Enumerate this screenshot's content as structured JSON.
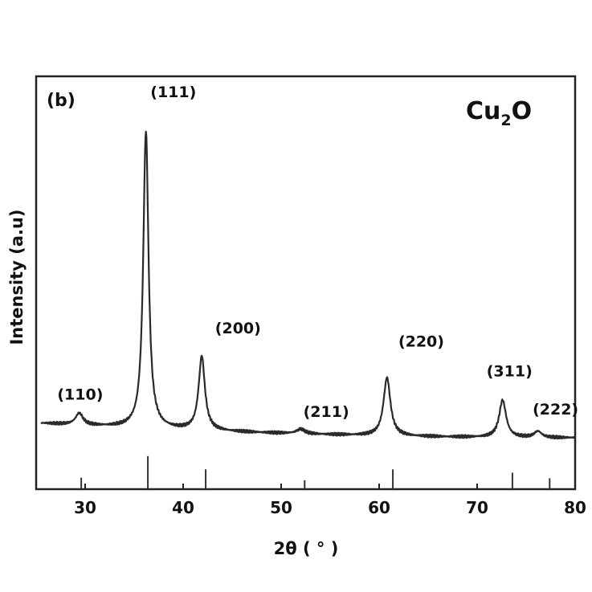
{
  "chart_data": {
    "type": "line",
    "panel_label": "(b)",
    "title": "",
    "formula": {
      "main": "Cu",
      "sub": "2",
      "tail": "O"
    },
    "xlabel": "2θ ( ° )",
    "ylabel": "Intensity (a.u)",
    "xlim": [
      25,
      80
    ],
    "ylim": [
      -0.6,
      4.7
    ],
    "x_ticks": [
      "30",
      "40",
      "50",
      "60",
      "70",
      "80"
    ],
    "x_tick_values": [
      30,
      40,
      50,
      60,
      70,
      80
    ],
    "grid": false,
    "series": [
      {
        "baseline": 0.25,
        "baseline_end": 0.06,
        "peaks": [
          {
            "x": 29.4,
            "height": 0.15,
            "width": 0.45
          },
          {
            "x": 36.2,
            "height": 3.82,
            "width": 0.32
          },
          {
            "x": 41.9,
            "height": 0.95,
            "width": 0.38
          },
          {
            "x": 52.0,
            "height": 0.06,
            "width": 0.5
          },
          {
            "x": 60.8,
            "height": 0.75,
            "width": 0.42
          },
          {
            "x": 72.6,
            "height": 0.48,
            "width": 0.42
          },
          {
            "x": 76.2,
            "height": 0.08,
            "width": 0.45
          }
        ]
      }
    ],
    "reference_lines": [
      {
        "x": 29.6,
        "height": 0.35
      },
      {
        "x": 36.4,
        "height": 1.0
      },
      {
        "x": 42.3,
        "height": 0.6
      },
      {
        "x": 52.4,
        "height": 0.27
      },
      {
        "x": 61.4,
        "height": 0.6
      },
      {
        "x": 73.6,
        "height": 0.5
      },
      {
        "x": 77.4,
        "height": 0.33
      }
    ],
    "peak_labels": [
      {
        "text": "(110)",
        "x": 29.5,
        "y": 0.55
      },
      {
        "text": "(111)",
        "x": 39.0,
        "y": 4.43
      },
      {
        "text": "(200)",
        "x": 45.6,
        "y": 1.4
      },
      {
        "text": "(211)",
        "x": 54.6,
        "y": 0.33
      },
      {
        "text": "(220)",
        "x": 64.3,
        "y": 1.23
      },
      {
        "text": "(311)",
        "x": 73.3,
        "y": 0.85
      },
      {
        "text": "(222)",
        "x": 78.0,
        "y": 0.36
      }
    ]
  }
}
